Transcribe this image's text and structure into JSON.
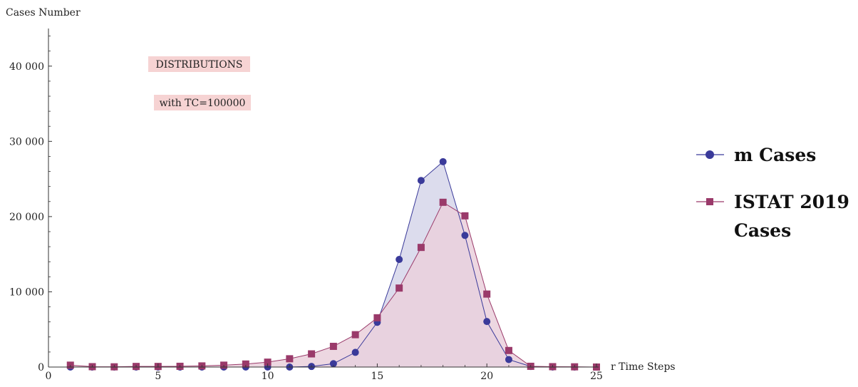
{
  "chart_data": {
    "type": "area",
    "xlabel": "r Time Steps",
    "ylabel": "Cases Number",
    "xlim": [
      0,
      25
    ],
    "ylim": [
      0,
      45000
    ],
    "xticks": [
      0,
      5,
      10,
      15,
      20,
      25
    ],
    "yticks": [
      0,
      10000,
      20000,
      30000,
      40000
    ],
    "ytick_labels": [
      "0",
      "10 000",
      "20 000",
      "30 000",
      "40 000"
    ],
    "annotations": [
      "DISTRIBUTIONS",
      "with TC=100000"
    ],
    "legend_position": "right",
    "series": [
      {
        "name": "m Cases",
        "marker": "circle",
        "color": "#3a3a9a",
        "fill": "#d6d6ea",
        "x": [
          1,
          2,
          3,
          4,
          5,
          6,
          7,
          8,
          9,
          10,
          11,
          12,
          13,
          14,
          15,
          16,
          17,
          18,
          19,
          20,
          21,
          22,
          23,
          24,
          25
        ],
        "values": [
          0,
          0,
          0,
          0,
          0,
          0,
          0,
          0,
          0,
          0,
          0,
          80,
          450,
          1950,
          5950,
          14300,
          24800,
          27300,
          17500,
          6050,
          1000,
          80,
          0,
          0,
          0
        ]
      },
      {
        "name": "ISTAT 2019\nCases",
        "marker": "square",
        "color": "#9a3a6a",
        "fill": "#ead0dc",
        "x": [
          1,
          2,
          3,
          4,
          5,
          6,
          7,
          8,
          9,
          10,
          11,
          12,
          13,
          14,
          15,
          16,
          17,
          18,
          19,
          20,
          21,
          22,
          23,
          24,
          25
        ],
        "values": [
          250,
          50,
          30,
          80,
          80,
          100,
          150,
          250,
          400,
          650,
          1100,
          1750,
          2750,
          4300,
          6550,
          10500,
          15900,
          21900,
          20100,
          9700,
          2200,
          100,
          50,
          30,
          0
        ]
      }
    ]
  }
}
